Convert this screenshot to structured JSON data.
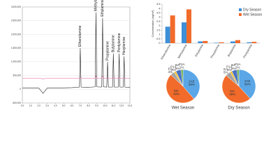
{
  "chart_data": [
    {
      "type": "line",
      "x": [
        0,
        1,
        2,
        2.5,
        3,
        4,
        5,
        6,
        6.9,
        7.0,
        7.1,
        8,
        8.8,
        8.9,
        9.0,
        9.5,
        9.6,
        9.7,
        9.8,
        10.2,
        10.3,
        10.4,
        10.9,
        11.0,
        11.1,
        11.6,
        11.7,
        11.8,
        12.2,
        12.3,
        12.4,
        13
      ],
      "series": [
        {
          "color": "#222222",
          "values": [
            50000,
            50000,
            40000,
            -150000,
            40000,
            50000,
            50000,
            60000,
            80000,
            1500000,
            80000,
            70000,
            90000,
            2800000,
            90000,
            80000,
            90000,
            2600000,
            90000,
            80000,
            1000000,
            80000,
            80000,
            1300000,
            80000,
            80000,
            1300000,
            80000,
            80000,
            1200000,
            80000,
            70000
          ]
        },
        {
          "color": "#e0609a",
          "values": [
            400000,
            400000,
            400000,
            380000,
            400000,
            400000,
            400000,
            400000,
            400000,
            450000,
            400000,
            400000,
            400000,
            480000,
            400000,
            400000,
            400000,
            470000,
            400000,
            400000,
            430000,
            400000,
            400000,
            440000,
            400000,
            400000,
            440000,
            400000,
            400000,
            430000,
            400000,
            400000
          ]
        }
      ],
      "annotations": [
        {
          "text": "Ethanolamine",
          "x": 7.0,
          "y": 1500000
        },
        {
          "text": "Methylamine",
          "x": 8.9,
          "y": 2800000
        },
        {
          "text": "Ethylamine",
          "x": 9.7,
          "y": 2600000
        },
        {
          "text": "Propylamine",
          "x": 10.3,
          "y": 1000000
        },
        {
          "text": "Butylamine",
          "x": 11.0,
          "y": 1300000
        },
        {
          "text": "Pentylamine",
          "x": 11.7,
          "y": 1300000
        },
        {
          "text": "Hexylamine",
          "x": 12.3,
          "y": 1200000
        }
      ],
      "xlim": [
        0,
        13
      ],
      "xticks": [
        {
          "value": 0,
          "label": "0.0"
        },
        {
          "value": 1,
          "label": "1.0"
        },
        {
          "value": 2,
          "label": "2.0"
        },
        {
          "value": 3,
          "label": "3.0"
        },
        {
          "value": 4,
          "label": "4.0"
        },
        {
          "value": 5,
          "label": "5.0"
        },
        {
          "value": 6,
          "label": "6.0"
        },
        {
          "value": 7,
          "label": "7.0"
        },
        {
          "value": 8,
          "label": "8.0"
        },
        {
          "value": 9,
          "label": "9.0"
        },
        {
          "value": 10,
          "label": "10.0"
        },
        {
          "value": 11,
          "label": "11.0"
        },
        {
          "value": 12,
          "label": "12.0"
        },
        {
          "value": 13,
          "label": "13.0"
        }
      ],
      "ylim": [
        -500000,
        3000000
      ],
      "yticks": [
        {
          "value": -500000,
          "label": "-500,000"
        },
        0,
        {
          "value": 500000,
          "label": "500,000"
        },
        {
          "value": 1000000,
          "label": "1,000,000"
        },
        {
          "value": 1500000,
          "label": "1,500,000"
        },
        {
          "value": 2000000,
          "label": "2,000,000"
        },
        {
          "value": 2500000,
          "label": "2,500,000"
        },
        {
          "value": 3000000,
          "label": "3,000,000"
        }
      ]
    },
    {
      "type": "bar",
      "y_label": "Concentration (ng/m³)",
      "categories": [
        "Ethanolamine",
        "Methylamine",
        "Ethylamine",
        "Propylamine",
        "Butylamine",
        "Pentylamine"
      ],
      "series": [
        {
          "name": "Dry Season",
          "color": "#3d8fd8",
          "values": [
            1.9,
            2.4,
            0.2,
            0.05,
            0.2,
            0.1
          ]
        },
        {
          "name": "Wet Season",
          "color": "#f26b2a",
          "values": [
            3.2,
            3.9,
            0.25,
            0.1,
            0.35,
            0.15
          ]
        }
      ],
      "ylim": [
        0,
        4.5
      ],
      "yticks": [
        0,
        0.5,
        1,
        {
          "value": 1.5,
          "label": "1.5"
        },
        2,
        {
          "value": 2.5,
          "label": "2.5"
        },
        3,
        {
          "value": 3.5,
          "label": "3.5"
        },
        4,
        {
          "value": 4.5,
          "label": "4.5"
        }
      ],
      "legend": "upper right"
    },
    {
      "type": "pie",
      "title": "Wet Season",
      "categories": [
        "2AE",
        "MA",
        "EA",
        "P1A",
        "BA",
        "P2A"
      ],
      "values": [
        39,
        49,
        4,
        2,
        5,
        2
      ],
      "value_labels": [
        "39%",
        "49%",
        "4%",
        "2%",
        "5%",
        "2%"
      ],
      "colors": [
        "#5aa6e6",
        "#f26b2a",
        "#a5a5a5",
        "#f2c12e",
        "#4a72c4",
        "#70ad47"
      ]
    },
    {
      "type": "pie",
      "title": "Dry Season",
      "categories": [
        "2AE",
        "MA",
        "EA",
        "P1A",
        "BA",
        "P2A"
      ],
      "values": [
        39,
        49,
        5,
        2,
        5,
        2
      ],
      "value_labels": [
        "39%",
        "49%",
        "5%",
        "2%",
        "5%",
        "2%"
      ],
      "colors": [
        "#5aa6e6",
        "#f26b2a",
        "#a5a5a5",
        "#f2c12e",
        "#4a72c4",
        "#70ad47"
      ]
    }
  ]
}
